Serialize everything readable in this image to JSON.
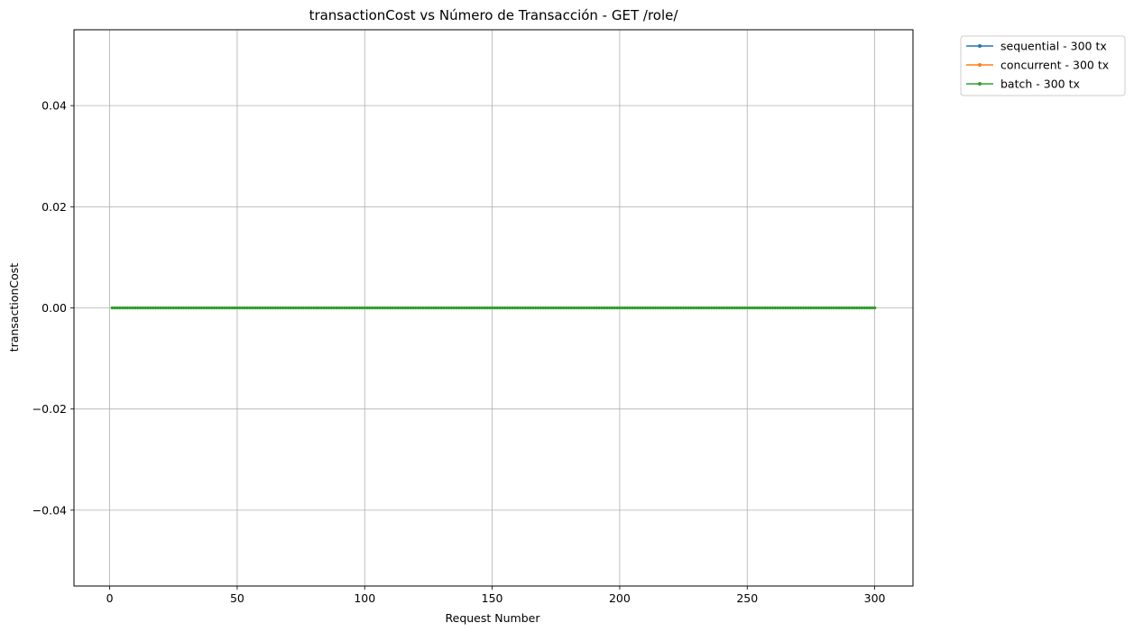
{
  "chart_data": {
    "type": "line",
    "title": "transactionCost vs Número de Transacción - GET /role/",
    "xlabel": "Request Number",
    "ylabel": "transactionCost",
    "xlim": [
      -14,
      315
    ],
    "ylim": [
      -0.055,
      0.055
    ],
    "xticks": [
      0,
      50,
      100,
      150,
      200,
      250,
      300
    ],
    "xtick_labels": [
      "0",
      "50",
      "100",
      "150",
      "200",
      "250",
      "300"
    ],
    "yticks": [
      -0.04,
      -0.02,
      0.0,
      0.02,
      0.04
    ],
    "ytick_labels": [
      "−0.04",
      "−0.02",
      "0.00",
      "0.02",
      "0.04"
    ],
    "grid": true,
    "legend_position": "outside-top-right",
    "x": {
      "start": 1,
      "end": 300,
      "step": 1
    },
    "series": [
      {
        "name": "sequential - 300 tx",
        "color": "#1f77b4",
        "y_constant": 0.0
      },
      {
        "name": "concurrent - 300 tx",
        "color": "#ff7f0e",
        "y_constant": 0.0
      },
      {
        "name": "batch - 300 tx",
        "color": "#2ca02c",
        "y_constant": 0.0
      }
    ]
  }
}
